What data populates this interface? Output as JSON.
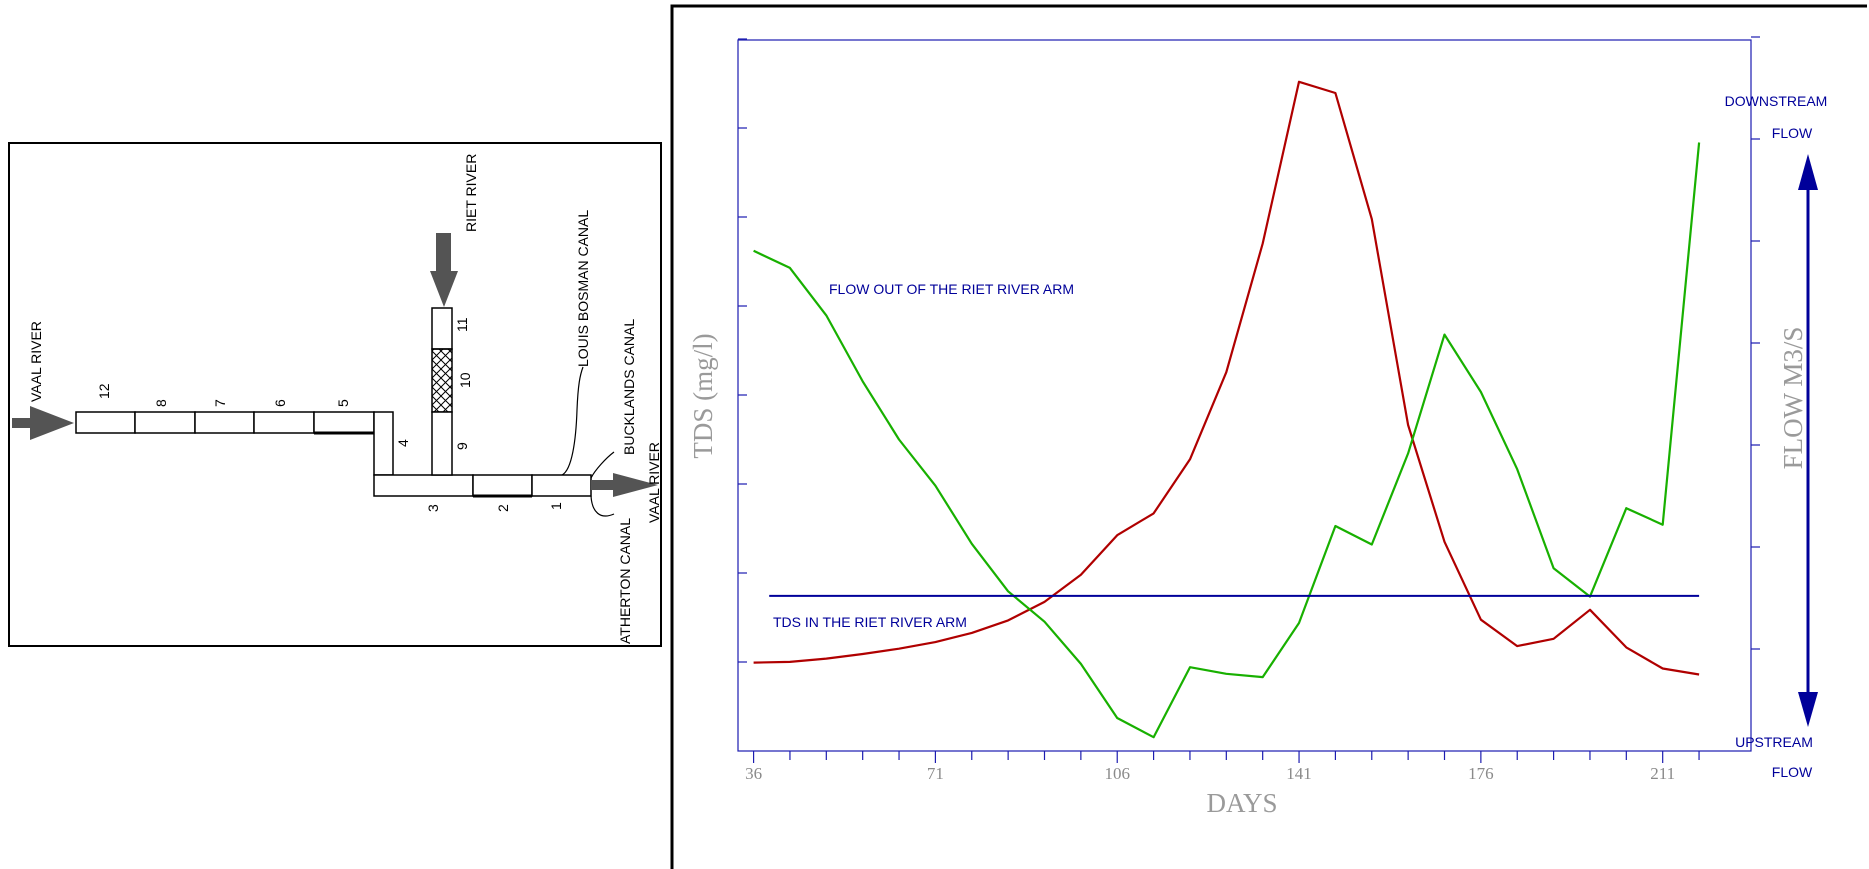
{
  "diagram": {
    "inflows": {
      "vaal_in": "VAAL RIVER",
      "riet": "RIET RIVER",
      "vaal_out": "VAAL RIVER"
    },
    "canals": {
      "louis_bosman": "LOUIS BOSMAN CANAL",
      "bucklands": "BUCKLANDS CANAL",
      "atherton": "ATHERTON CANAL"
    },
    "segments": {
      "s12": "12",
      "s8": "8",
      "s7": "7",
      "s6": "6",
      "s5": "5",
      "s4": "4",
      "s3": "3",
      "s2": "2",
      "s1": "1",
      "s9": "9",
      "s10": "10",
      "s11": "11"
    },
    "colors": {
      "arrow": "#545454",
      "line": "#000000"
    }
  },
  "chart_data": {
    "type": "line",
    "xlabel": "DAYS",
    "ylabel": "TDS (mg/l)",
    "y2label": "FLOW M3/S",
    "x_ticks": [
      36,
      71,
      106,
      141,
      176,
      211
    ],
    "x_range": [
      33,
      228
    ],
    "y_range": [
      0,
      100
    ],
    "y2_range": [
      0,
      100
    ],
    "grid": false,
    "series": [
      {
        "color": "#b00000",
        "axis": "left",
        "x": [
          36,
          43,
          50,
          57,
          64,
          71,
          78,
          85,
          92,
          99,
          106,
          113,
          120,
          127,
          134,
          141,
          148,
          155,
          162,
          169,
          176,
          183,
          190,
          197,
          204,
          211,
          218
        ],
        "y": [
          9.0,
          9.1,
          9.6,
          10.3,
          11.1,
          12.1,
          13.5,
          15.4,
          18.2,
          22.3,
          28.3,
          31.6,
          39.8,
          53.0,
          72.5,
          97.0,
          95.3,
          76.2,
          45.0,
          27.3,
          15.5,
          11.5,
          12.6,
          17.0,
          11.3,
          8.1,
          7.2
        ]
      },
      {
        "color": "#18b000",
        "axis": "right",
        "x": [
          36,
          43,
          50,
          57,
          64,
          71,
          78,
          85,
          92,
          99,
          106,
          113,
          120,
          127,
          134,
          141,
          148,
          155,
          162,
          169,
          176,
          183,
          190,
          197,
          204,
          211,
          218
        ],
        "y": [
          71.4,
          68.8,
          61.6,
          51.6,
          42.8,
          35.8,
          27.0,
          19.8,
          15.2,
          8.8,
          0.6,
          -2.3,
          8.3,
          7.3,
          6.8,
          15.0,
          29.7,
          26.9,
          40.7,
          58.7,
          50.0,
          38.3,
          23.3,
          19.0,
          32.4,
          29.9,
          87.8
        ]
      },
      {
        "color": "#00009a",
        "axis": "right",
        "x": [
          39,
          218
        ],
        "y": [
          19.1,
          19.1
        ]
      }
    ],
    "annotations": {
      "flow_out": "FLOW OUT OF THE RIET RIVER ARM",
      "tds_in": "TDS IN THE RIET RIVER ARM",
      "downstream_1": "DOWNSTREAM",
      "downstream_2": "FLOW",
      "upstream_1": "UPSTREAM",
      "upstream_2": "FLOW"
    },
    "colors": {
      "axis": "#1c1cb0",
      "frame": "#000000",
      "arrow": "#00009a"
    }
  }
}
